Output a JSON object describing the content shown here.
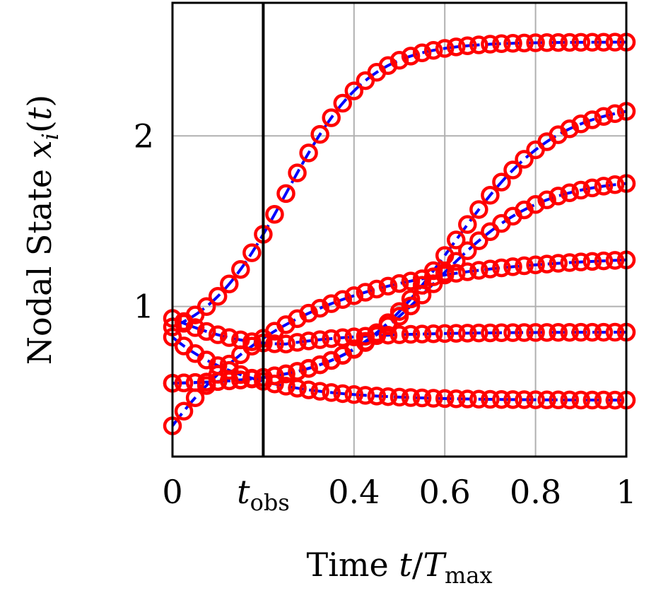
{
  "chart_data": {
    "type": "line",
    "xlabel": "Time t/T_max",
    "xlabel_parts": {
      "prefix": "Time ",
      "var": "t",
      "slash": "/",
      "T": "T",
      "sub": "max"
    },
    "ylabel": "Nodal State x_i(t)",
    "ylabel_parts": {
      "prefix": "Nodal State ",
      "var": "x",
      "sub": "i",
      "paren_open": "(",
      "t": "t",
      "paren_close": ")"
    },
    "xlim": [
      0,
      1
    ],
    "ylim": [
      0.12,
      2.78
    ],
    "grid": true,
    "x_ticks": [
      {
        "value": 0,
        "label": "0"
      },
      {
        "value": 0.2,
        "label": "t",
        "sub": "obs"
      },
      {
        "value": 0.4,
        "label": "0.4"
      },
      {
        "value": 0.6,
        "label": "0.6"
      },
      {
        "value": 0.8,
        "label": "0.8"
      },
      {
        "value": 1.0,
        "label": "1"
      }
    ],
    "y_ticks": [
      {
        "value": 1,
        "label": "1"
      },
      {
        "value": 2,
        "label": "2"
      }
    ],
    "t_obs": 0.2,
    "line_color": "#0000ff",
    "marker_color": "#ff0000",
    "series": [
      {
        "x0": 0.88,
        "xinf": 2.55,
        "k": 5.0,
        "shape": "sig",
        "mid": 0.25
      },
      {
        "x0": 0.55,
        "xinf": 2.2,
        "k": 4.0,
        "shape": "sig",
        "mid": 0.62
      },
      {
        "x0": 0.55,
        "xinf": 1.75,
        "k": 4.0,
        "shape": "sig",
        "mid": 0.58
      },
      {
        "x0": 0.3,
        "xinf": 1.3,
        "k": 3.6,
        "shape": "exp"
      },
      {
        "x0": 0.93,
        "xinf": 0.85,
        "k": 6.0,
        "shape": "dip",
        "min": 0.78,
        "tmin": 0.25
      },
      {
        "x0": 0.82,
        "xinf": 0.45,
        "k": 6.0,
        "shape": "exp"
      }
    ]
  }
}
